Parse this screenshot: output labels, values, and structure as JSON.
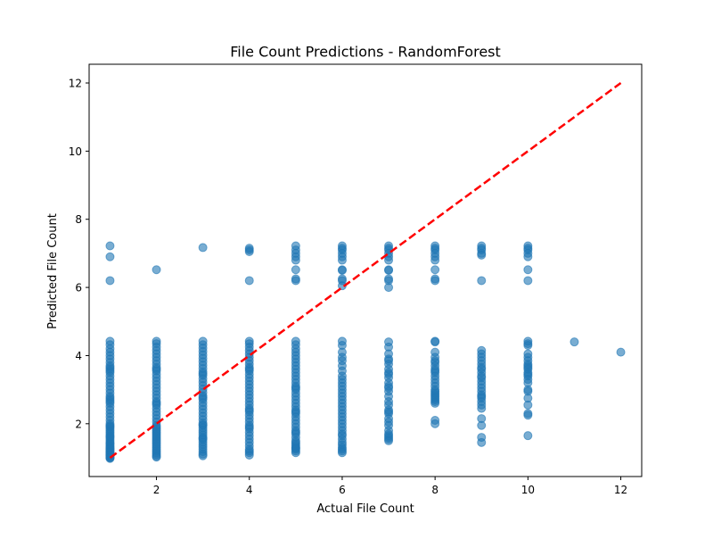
{
  "chart_data": {
    "type": "scatter",
    "title": "File Count Predictions - RandomForest",
    "xlabel": "Actual File Count",
    "ylabel": "Predicted File Count",
    "xlim": [
      0.55,
      12.45
    ],
    "ylim": [
      0.45,
      12.55
    ],
    "xticks": [
      2,
      4,
      6,
      8,
      10,
      12
    ],
    "yticks": [
      2,
      4,
      6,
      8,
      10,
      12
    ],
    "grid": false,
    "point_color": "#1f77b4",
    "point_alpha": 0.6,
    "reference_line": {
      "from": [
        1,
        1
      ],
      "to": [
        12,
        12
      ],
      "color": "#ff0000",
      "style": "dashed",
      "description": "y = x"
    },
    "x": [
      1,
      1,
      1,
      1,
      1,
      1,
      1,
      1,
      1,
      1,
      1,
      1,
      1,
      1,
      1,
      1,
      1,
      1,
      1,
      1,
      1,
      1,
      1,
      1,
      1,
      1,
      1,
      1,
      1,
      1,
      1,
      1,
      1,
      1,
      1,
      1,
      1,
      1,
      1,
      1,
      1,
      1,
      1,
      1,
      1,
      1,
      1,
      1,
      1,
      1,
      1,
      1,
      1,
      1,
      1,
      1,
      1,
      1,
      1,
      1,
      1,
      1,
      1,
      1,
      1,
      2,
      2,
      2,
      2,
      2,
      2,
      2,
      2,
      2,
      2,
      2,
      2,
      2,
      2,
      2,
      2,
      2,
      2,
      2,
      2,
      2,
      2,
      2,
      2,
      2,
      2,
      2,
      2,
      2,
      2,
      2,
      2,
      2,
      2,
      2,
      2,
      2,
      2,
      2,
      2,
      2,
      2,
      2,
      2,
      2,
      2,
      2,
      2,
      3,
      3,
      3,
      3,
      3,
      3,
      3,
      3,
      3,
      3,
      3,
      3,
      3,
      3,
      3,
      3,
      3,
      3,
      3,
      3,
      3,
      3,
      3,
      3,
      3,
      3,
      3,
      3,
      3,
      3,
      3,
      3,
      3,
      3,
      3,
      3,
      3,
      3,
      3,
      3,
      3,
      3,
      3,
      3,
      4,
      4,
      4,
      4,
      4,
      4,
      4,
      4,
      4,
      4,
      4,
      4,
      4,
      4,
      4,
      4,
      4,
      4,
      4,
      4,
      4,
      4,
      4,
      4,
      4,
      4,
      4,
      4,
      4,
      4,
      4,
      4,
      4,
      4,
      4,
      4,
      4,
      4,
      4,
      4,
      4,
      4,
      4,
      5,
      5,
      5,
      5,
      5,
      5,
      5,
      5,
      5,
      5,
      5,
      5,
      5,
      5,
      5,
      5,
      5,
      5,
      5,
      5,
      5,
      5,
      5,
      5,
      5,
      5,
      5,
      5,
      5,
      5,
      5,
      5,
      5,
      5,
      5,
      5,
      5,
      5,
      5,
      5,
      5,
      5,
      5,
      5,
      5,
      5,
      5,
      5,
      5,
      6,
      6,
      6,
      6,
      6,
      6,
      6,
      6,
      6,
      6,
      6,
      6,
      6,
      6,
      6,
      6,
      6,
      6,
      6,
      6,
      6,
      6,
      6,
      6,
      6,
      6,
      6,
      6,
      6,
      6,
      6,
      6,
      6,
      6,
      6,
      6,
      6,
      6,
      6,
      6,
      6,
      6,
      6,
      6,
      7,
      7,
      7,
      7,
      7,
      7,
      7,
      7,
      7,
      7,
      7,
      7,
      7,
      7,
      7,
      7,
      7,
      7,
      7,
      7,
      7,
      7,
      7,
      7,
      7,
      7,
      7,
      7,
      7,
      7,
      7,
      7,
      7,
      7,
      7,
      7,
      7,
      7,
      7,
      7,
      8,
      8,
      8,
      8,
      8,
      8,
      8,
      8,
      8,
      8,
      8,
      8,
      8,
      8,
      8,
      8,
      8,
      8,
      8,
      8,
      8,
      8,
      8,
      8,
      8,
      8,
      8,
      8,
      8,
      8,
      8,
      8,
      8,
      8,
      9,
      9,
      9,
      9,
      9,
      9,
      9,
      9,
      9,
      9,
      9,
      9,
      9,
      9,
      9,
      9,
      9,
      9,
      9,
      9,
      9,
      9,
      9,
      9,
      9,
      9,
      9,
      9,
      9,
      9,
      10,
      10,
      10,
      10,
      10,
      10,
      10,
      10,
      10,
      10,
      10,
      10,
      10,
      10,
      10,
      10,
      10,
      10,
      10,
      10,
      10,
      10,
      10,
      10,
      10,
      10,
      10,
      10,
      10,
      11,
      12
    ],
    "y": [
      7.22,
      6.9,
      6.2,
      4.42,
      4.32,
      4.2,
      4.1,
      4.0,
      3.9,
      3.8,
      3.7,
      3.6,
      3.5,
      3.4,
      3.3,
      3.2,
      3.1,
      3.0,
      2.9,
      2.8,
      2.7,
      2.6,
      2.5,
      2.4,
      2.3,
      2.2,
      2.1,
      2.0,
      1.95,
      1.9,
      1.85,
      1.8,
      1.75,
      1.7,
      1.65,
      1.6,
      1.55,
      1.5,
      1.45,
      1.4,
      1.35,
      1.3,
      1.27,
      1.24,
      1.21,
      1.18,
      1.15,
      1.12,
      1.09,
      1.06,
      1.03,
      1.0,
      0.98,
      3.65,
      3.55,
      2.75,
      2.65,
      1.92,
      1.62,
      1.42,
      1.33,
      1.26,
      1.17,
      1.08,
      1.01,
      6.52,
      4.42,
      4.35,
      4.25,
      4.15,
      4.05,
      3.95,
      3.85,
      3.75,
      3.65,
      3.55,
      3.45,
      3.35,
      3.25,
      3.15,
      3.05,
      2.95,
      2.85,
      2.75,
      2.65,
      2.55,
      2.45,
      2.35,
      2.25,
      2.15,
      2.05,
      1.95,
      1.9,
      1.85,
      1.8,
      1.75,
      1.7,
      1.65,
      1.6,
      1.55,
      1.5,
      1.45,
      1.4,
      1.35,
      1.3,
      1.25,
      1.2,
      1.15,
      1.1,
      1.05,
      1.02,
      3.6,
      2.6,
      7.17,
      4.42,
      4.32,
      4.22,
      4.12,
      4.02,
      3.92,
      3.82,
      3.72,
      3.62,
      3.52,
      3.42,
      3.32,
      3.22,
      3.12,
      3.02,
      2.92,
      2.82,
      2.72,
      2.62,
      2.52,
      2.42,
      2.32,
      2.22,
      2.12,
      2.02,
      1.95,
      1.88,
      1.81,
      1.74,
      1.67,
      1.6,
      1.53,
      1.46,
      1.39,
      1.32,
      1.25,
      1.18,
      1.11,
      1.06,
      3.47,
      2.77,
      1.97,
      1.57,
      7.15,
      7.1,
      7.05,
      6.2,
      4.42,
      4.35,
      4.25,
      4.15,
      4.05,
      3.95,
      3.85,
      3.75,
      3.65,
      3.55,
      3.45,
      3.35,
      3.25,
      3.15,
      3.05,
      2.95,
      2.85,
      2.75,
      2.65,
      2.55,
      2.45,
      2.35,
      2.25,
      2.15,
      2.05,
      1.95,
      1.85,
      1.75,
      1.65,
      1.55,
      1.45,
      1.35,
      1.25,
      1.15,
      1.08,
      3.6,
      2.4,
      1.9,
      1.2,
      7.22,
      7.1,
      7.0,
      6.9,
      6.8,
      6.52,
      6.25,
      6.2,
      4.42,
      4.32,
      4.2,
      4.1,
      4.0,
      3.9,
      3.8,
      3.7,
      3.6,
      3.5,
      3.4,
      3.3,
      3.2,
      3.1,
      3.0,
      2.9,
      2.8,
      2.7,
      2.6,
      2.5,
      2.4,
      2.3,
      2.2,
      2.1,
      2.0,
      1.9,
      1.8,
      1.7,
      1.6,
      1.5,
      1.45,
      1.4,
      1.35,
      1.3,
      1.25,
      1.2,
      1.15,
      3.05,
      2.35,
      1.75,
      1.28,
      7.22,
      7.15,
      7.1,
      7.0,
      6.9,
      6.8,
      6.52,
      6.5,
      6.25,
      6.2,
      6.05,
      4.42,
      4.3,
      4.1,
      3.95,
      3.85,
      3.7,
      3.55,
      3.4,
      3.3,
      3.2,
      3.1,
      3.0,
      2.9,
      2.8,
      2.7,
      2.6,
      2.5,
      2.4,
      2.3,
      2.2,
      2.1,
      2.0,
      1.9,
      1.8,
      1.7,
      1.65,
      1.55,
      1.45,
      1.38,
      1.3,
      1.25,
      1.2,
      1.15,
      7.22,
      7.15,
      7.1,
      7.0,
      6.9,
      6.8,
      6.52,
      6.5,
      6.25,
      6.2,
      6.0,
      4.4,
      4.25,
      4.05,
      3.9,
      3.75,
      3.6,
      3.5,
      3.35,
      3.2,
      3.1,
      2.95,
      2.8,
      2.65,
      2.55,
      2.4,
      2.3,
      2.15,
      2.05,
      1.95,
      1.8,
      1.7,
      1.6,
      1.5,
      3.85,
      3.45,
      3.05,
      2.35,
      1.65,
      1.55,
      7.22,
      7.15,
      7.1,
      7.0,
      6.9,
      6.8,
      6.52,
      6.25,
      6.2,
      4.42,
      4.4,
      4.1,
      3.95,
      3.85,
      3.8,
      3.7,
      3.6,
      3.5,
      3.4,
      3.3,
      3.2,
      3.1,
      3.0,
      2.95,
      2.9,
      2.85,
      2.8,
      2.7,
      2.65,
      2.6,
      2.1,
      2.0,
      3.55,
      2.75,
      7.22,
      7.15,
      7.1,
      7.0,
      6.95,
      6.2,
      4.15,
      4.05,
      3.95,
      3.85,
      3.75,
      3.65,
      3.6,
      3.5,
      3.35,
      3.25,
      3.15,
      3.05,
      2.95,
      2.85,
      2.75,
      2.65,
      2.55,
      2.45,
      2.15,
      1.95,
      1.6,
      1.45,
      3.4,
      2.8,
      7.22,
      7.15,
      7.1,
      7.0,
      6.9,
      6.52,
      6.2,
      4.42,
      4.35,
      4.3,
      4.05,
      3.95,
      3.85,
      3.75,
      3.7,
      3.6,
      3.5,
      3.4,
      3.3,
      3.2,
      3.0,
      2.75,
      2.55,
      2.3,
      2.25,
      1.65,
      3.65,
      3.45,
      2.95,
      4.4,
      4.1
    ]
  }
}
